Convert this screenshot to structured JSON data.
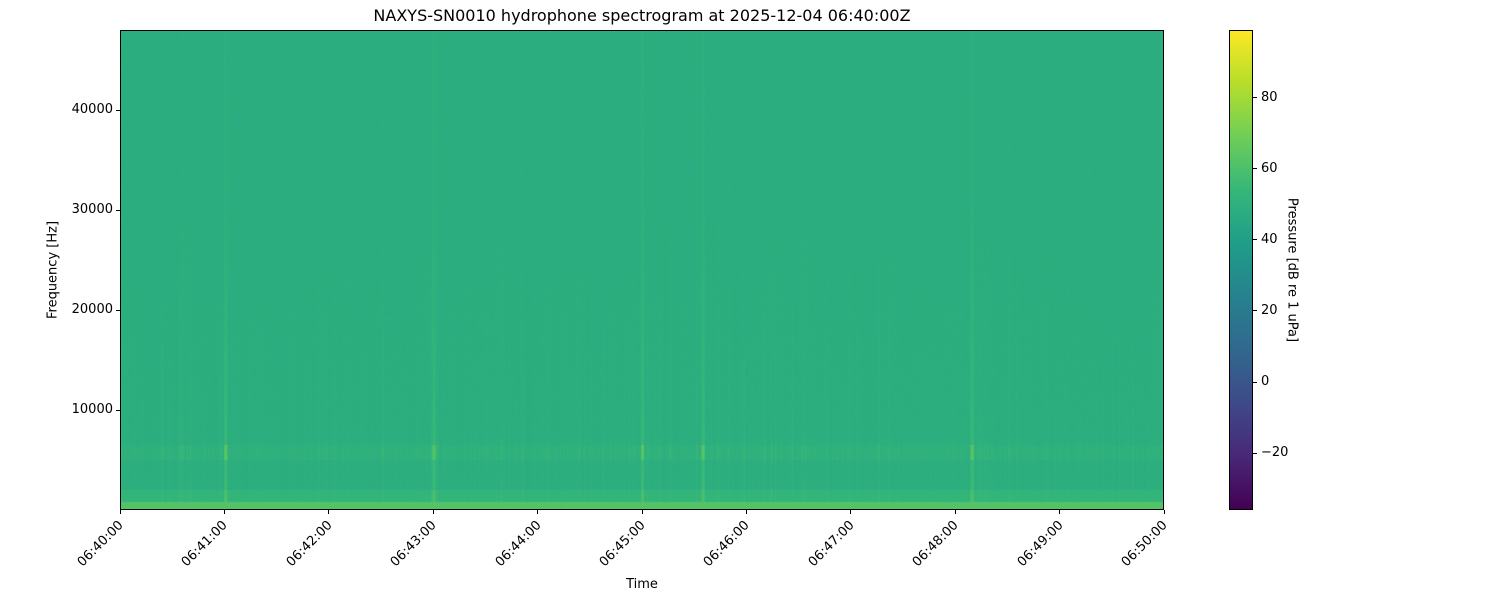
{
  "chart_data": {
    "type": "heatmap",
    "title": "NAXYS-SN0010 hydrophone spectrogram at 2025-12-04 06:40:00Z",
    "xlabel": "Time",
    "ylabel": "Frequency [Hz]",
    "xlim": [
      "06:40:00",
      "06:50:00"
    ],
    "ylim": [
      0,
      48000
    ],
    "x_ticks": [
      "06:40:00",
      "06:41:00",
      "06:42:00",
      "06:43:00",
      "06:44:00",
      "06:45:00",
      "06:46:00",
      "06:47:00",
      "06:48:00",
      "06:49:00",
      "06:50:00"
    ],
    "y_ticks": [
      10000,
      20000,
      30000,
      40000
    ],
    "colorbar": {
      "label": "Pressure [dB re 1 uPa]",
      "colormap": "viridis",
      "range": [
        -36,
        99
      ],
      "ticks": [
        -20,
        0,
        20,
        40,
        60,
        80
      ]
    },
    "typical_level_db": 48,
    "low_frequency_band_db": 62,
    "tonal_band_hz": [
      5000,
      6500
    ],
    "broadband_events": [
      "06:41:00",
      "06:43:00",
      "06:45:00",
      "06:45:35",
      "06:48:10"
    ],
    "grid": false
  }
}
